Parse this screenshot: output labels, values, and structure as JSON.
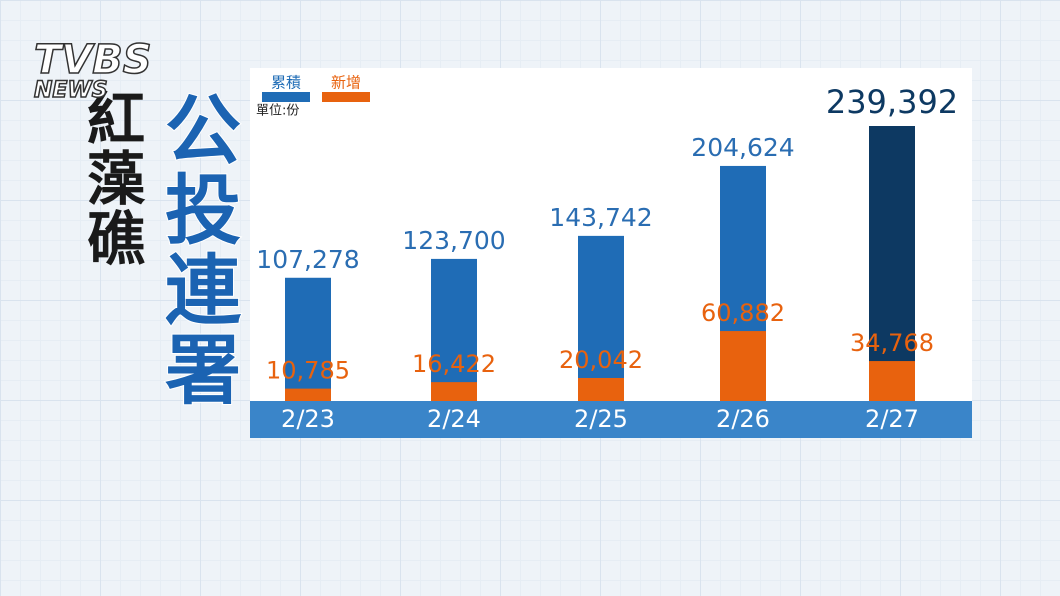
{
  "logo": {
    "brand": "TVBS",
    "sub": "NEWS"
  },
  "headline": {
    "topic": "紅藻礁",
    "main": "公投連署"
  },
  "chart_data": {
    "type": "bar",
    "unit_note": "單位:份",
    "categories": [
      "2/23",
      "2/24",
      "2/25",
      "2/26",
      "2/27"
    ],
    "series": [
      {
        "name": "累積",
        "color": "#1f6cb6",
        "point_colors": [
          "#1f6cb6",
          "#1f6cb6",
          "#1f6cb6",
          "#1f6cb6",
          "#0d3962"
        ],
        "values": [
          107278,
          123700,
          143742,
          204624,
          239392
        ],
        "value_labels": [
          "107,278",
          "123,700",
          "143,742",
          "204,624",
          "239,392"
        ]
      },
      {
        "name": "新增",
        "color": "#e8620e",
        "values": [
          10785,
          16422,
          20042,
          60882,
          34768
        ],
        "value_labels": [
          "10,785",
          "16,422",
          "20,042",
          "60,882",
          "34,768"
        ]
      }
    ]
  }
}
